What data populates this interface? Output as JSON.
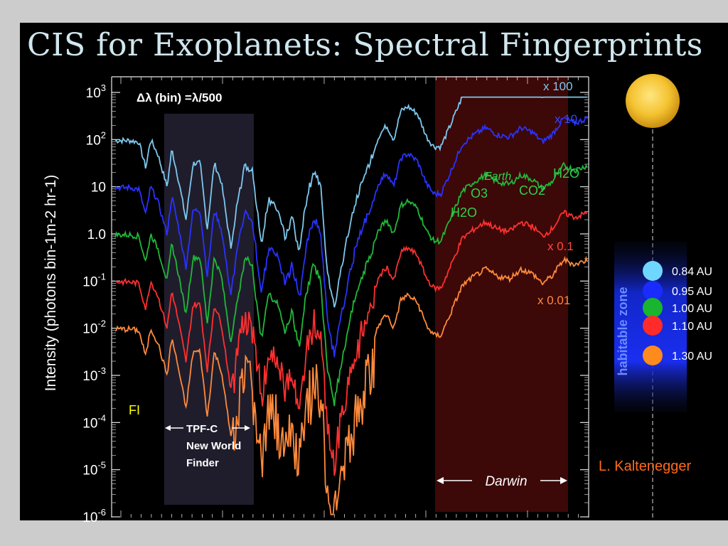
{
  "slide": {
    "title": "CIS for Exoplanets: Spectral Fingerprints",
    "credit": "L. Kaltenegger",
    "corner_label": "FI"
  },
  "chart_data": {
    "type": "line",
    "yscale": "log",
    "ylabel": "Intensity (photons bin-1m-2 hr-1)",
    "ylim": [
      1e-06,
      1000.0
    ],
    "yticks": [
      "10^3",
      "10^2",
      "10",
      "1.0",
      "10^-1",
      "10^-2",
      "10^-3",
      "10^-4",
      "10^-5",
      "10^-6"
    ],
    "bin_label": "Δλ (bin) =λ/500",
    "regions": [
      {
        "name": "tpf",
        "lines": [
          "TPF-C",
          "New World",
          "Finder"
        ]
      },
      {
        "name": "darwin",
        "label": "Darwin"
      }
    ],
    "scale_labels": [
      "x 100",
      "x 10",
      "x 0.1",
      "x 0.01"
    ],
    "feature_labels": [
      "H2O",
      "O3",
      "Earth",
      "CO2",
      "H2O"
    ],
    "legend": {
      "zone_label": "habitable zone",
      "placement": "right",
      "entries": [
        {
          "label": "0.84 AU",
          "color": "#6fd6ff"
        },
        {
          "label": "0.95 AU",
          "color": "#1a2bff"
        },
        {
          "label": "1.00 AU",
          "color": "#19b52e"
        },
        {
          "label": "1.10 AU",
          "color": "#ff2a2a"
        },
        {
          "label": "1.30 AU",
          "color": "#ff8a1e"
        }
      ]
    },
    "series": [
      {
        "color": "#7ec8ee",
        "offset": 2
      },
      {
        "color": "#2a32ff",
        "offset": 1
      },
      {
        "color": "#20b83a",
        "offset": 0
      },
      {
        "color": "#ff3030",
        "offset": -1
      },
      {
        "color": "#ff8a3c",
        "offset": -2
      }
    ]
  }
}
